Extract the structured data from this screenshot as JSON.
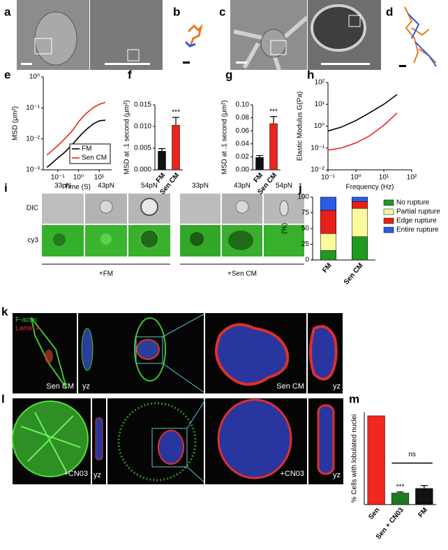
{
  "figure": {
    "panel_labels": [
      "a",
      "b",
      "c",
      "d",
      "e",
      "f",
      "g",
      "h",
      "i",
      "j",
      "k",
      "l",
      "m"
    ],
    "panel_i": {
      "forces": [
        "33pN",
        "43pN",
        "54pN",
        "33pN",
        "43pN",
        "54pN"
      ],
      "rows": [
        "DIC",
        "cy3"
      ],
      "groups": [
        "+FM",
        "+Sen CM"
      ]
    },
    "panel_k": {
      "stains": [
        "F-actin",
        "Lamin A"
      ],
      "captions": [
        "Sen CM",
        "yz",
        "Sen CM",
        "yz"
      ]
    },
    "panel_l": {
      "captions": [
        "+CN03",
        "yz",
        "+CN03",
        "yz"
      ]
    }
  },
  "chart_data": [
    {
      "type": "line",
      "xlabel": "Time (S)",
      "ylabel": "MSD (μm²)",
      "log_x": true,
      "log_y": true,
      "x": [
        0.03,
        0.05,
        0.1,
        0.2,
        0.5,
        1,
        2,
        5,
        10,
        20
      ],
      "series": [
        {
          "name": "FM",
          "color": "#000000",
          "values": [
            0.0012,
            0.0016,
            0.0024,
            0.0035,
            0.0065,
            0.011,
            0.018,
            0.03,
            0.038,
            0.04
          ]
        },
        {
          "name": "Sen CM",
          "color": "#e8251e",
          "values": [
            0.003,
            0.004,
            0.006,
            0.0095,
            0.018,
            0.035,
            0.06,
            0.1,
            0.13,
            0.15
          ]
        }
      ],
      "xlim": [
        0.02,
        40
      ],
      "xticks": [
        {
          "value": 0.1,
          "label": "10⁻¹"
        },
        {
          "value": 1,
          "label": "10⁰"
        },
        {
          "value": 10,
          "label": "10¹"
        }
      ],
      "ylim": [
        0.001,
        1
      ],
      "yticks": [
        {
          "value": 0.001,
          "label": "10⁻³"
        },
        {
          "value": 0.01,
          "label": "10⁻²"
        },
        {
          "value": 0.1,
          "label": "10⁻¹"
        },
        {
          "value": 1,
          "label": "10⁰"
        }
      ],
      "legend": "lower-right"
    },
    {
      "type": "bar",
      "ylabel": "MSD at .1 second (μm²)",
      "categories": [
        "FM",
        "Sen CM"
      ],
      "values": [
        0.0043,
        0.0103
      ],
      "errors": [
        0.0006,
        0.0018
      ],
      "colors": [
        "#111111",
        "#e8251e"
      ],
      "significance": [
        null,
        "***"
      ],
      "ylim": [
        0,
        0.015
      ],
      "yticks": [
        {
          "value": 0,
          "label": "0.000"
        },
        0.005,
        {
          "value": 0.01,
          "label": "0.010"
        },
        0.015
      ]
    },
    {
      "type": "bar",
      "ylabel": "MSD at .1 second (μm²)",
      "categories": [
        "FM",
        "Sen CM"
      ],
      "values": [
        0.019,
        0.071
      ],
      "errors": [
        0.003,
        0.011
      ],
      "colors": [
        "#111111",
        "#e8251e"
      ],
      "significance": [
        null,
        "***"
      ],
      "ylim": [
        0,
        0.1
      ],
      "yticks": [
        {
          "value": 0,
          "label": "0.00"
        },
        0.02,
        0.04,
        0.06,
        0.08,
        {
          "value": 0.1,
          "label": "0.10"
        }
      ]
    },
    {
      "type": "line",
      "xlabel": "Frequency (Hz)",
      "ylabel": "Elastic Modulus G(Pa)",
      "log_x": true,
      "log_y": true,
      "x": [
        0.1,
        0.3,
        1,
        3,
        10,
        30
      ],
      "series": [
        {
          "color": "#000000",
          "values": [
            0.6,
            0.9,
            1.8,
            4,
            10,
            28
          ]
        },
        {
          "color": "#e8251e",
          "values": [
            0.08,
            0.1,
            0.17,
            0.35,
            1.1,
            4
          ]
        }
      ],
      "xlim": [
        0.1,
        100
      ],
      "xticks": [
        {
          "value": 0.1,
          "label": "10⁻¹"
        },
        {
          "value": 1,
          "label": "10⁰"
        },
        {
          "value": 10,
          "label": "10¹"
        },
        {
          "value": 100,
          "label": "10²"
        }
      ],
      "ylim": [
        0.01,
        100
      ],
      "yticks": [
        {
          "value": 0.01,
          "label": "10⁻²"
        },
        {
          "value": 0.1,
          "label": "10⁻¹"
        },
        {
          "value": 1,
          "label": "10⁰"
        },
        {
          "value": 10,
          "label": "10¹"
        },
        {
          "value": 100,
          "label": "10²"
        }
      ]
    },
    {
      "type": "stacked_bar",
      "ylabel": "(%)",
      "categories": [
        "FM",
        "Sen CM"
      ],
      "series": [
        {
          "name": "No rupture",
          "color": "#1f9a22",
          "values": [
            15,
            37
          ]
        },
        {
          "name": "Partial rupture",
          "color": "#fbfb9e",
          "values": [
            27,
            45
          ]
        },
        {
          "name": "Edge rupture",
          "color": "#e8201a",
          "values": [
            37,
            11
          ]
        },
        {
          "name": "Entire rupture",
          "color": "#2b5ce6",
          "values": [
            21,
            7
          ]
        }
      ],
      "ylim": [
        0,
        100
      ],
      "yticks": [
        0,
        25,
        50,
        75,
        100
      ],
      "legend": "right"
    },
    {
      "type": "bar",
      "ylabel": "% Cells with lobulated nuclei",
      "categories": [
        "Sen",
        "Sen + CN03",
        "FM"
      ],
      "values": [
        77,
        10,
        14
      ],
      "errors": [
        null,
        1,
        2.5
      ],
      "colors": [
        "#f0281e",
        "#1f7a1f",
        "#111111"
      ],
      "significance": [
        null,
        "***",
        null
      ],
      "comparison": "ns",
      "ylim": [
        0,
        80
      ]
    }
  ]
}
